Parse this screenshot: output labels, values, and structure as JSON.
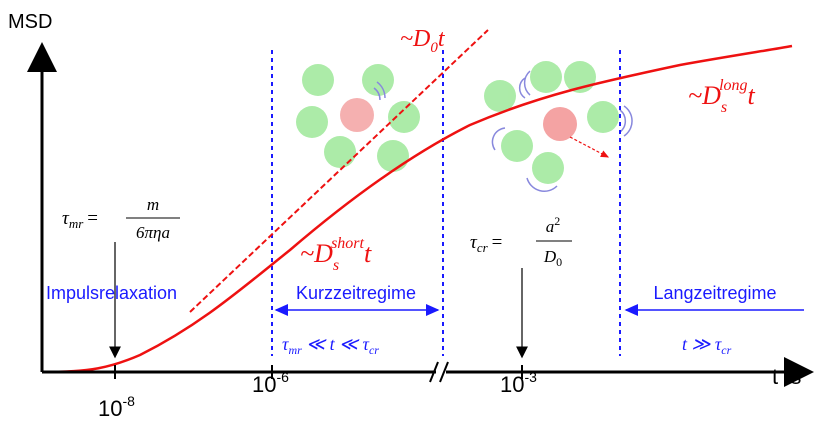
{
  "axes": {
    "y_label": "MSD",
    "x_label": "t /s"
  },
  "x_ticks": [
    {
      "base": "10",
      "exponent": "-8"
    },
    {
      "base": "10",
      "exponent": "-6"
    },
    {
      "base": "10",
      "exponent": "-3"
    }
  ],
  "curve_labels": {
    "free": {
      "prefix": "~D",
      "sub": "0",
      "suffix": "t"
    },
    "short": {
      "prefix": "~D",
      "sub": "s",
      "sup": "short",
      "suffix": "t"
    },
    "long": {
      "prefix": "~D",
      "sub": "s",
      "sup": "long",
      "suffix": "t"
    }
  },
  "formulas": {
    "tau_mr": {
      "symbol": "τ",
      "sub": "mr",
      "eq": "=",
      "numerator": "m",
      "denominator": "6πηa"
    },
    "tau_cr": {
      "symbol": "τ",
      "sub": "cr",
      "eq": "=",
      "numerator": "a",
      "numerator_sup": "2",
      "denominator": "D",
      "denominator_sub": "0"
    }
  },
  "regimes": [
    "Impulsrelaxation",
    "Kurzzeitregime",
    "Langzeitregime"
  ],
  "conditions": {
    "short": {
      "tau1": "τ",
      "sub1": "mr",
      "middle": " ≪ t ≪ ",
      "tau2": "τ",
      "sub2": "cr"
    },
    "long": {
      "text": "t ≫ τ",
      "sub": "cr"
    }
  }
}
